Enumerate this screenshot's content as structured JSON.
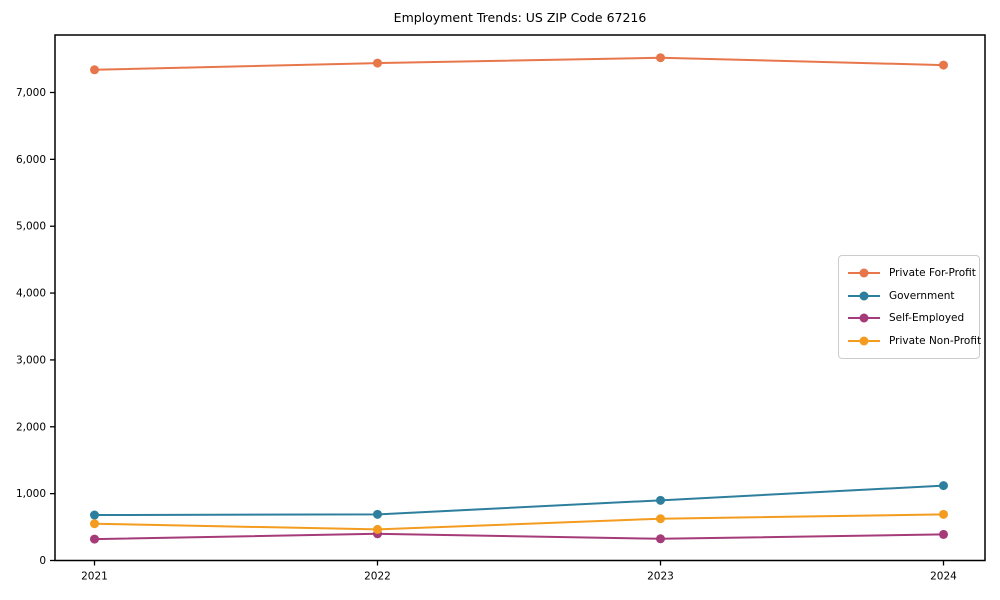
{
  "title": "Employment Trends: US ZIP Code 67216",
  "chart_data": {
    "type": "line",
    "x": [
      "2021",
      "2022",
      "2023",
      "2024"
    ],
    "series": [
      {
        "name": "Private For-Profit",
        "color": "#e8764b",
        "values": [
          7340,
          7440,
          7520,
          7410
        ]
      },
      {
        "name": "Government",
        "color": "#2d7f9d",
        "values": [
          680,
          690,
          900,
          1120
        ]
      },
      {
        "name": "Self-Employed",
        "color": "#a53b78",
        "values": [
          320,
          400,
          325,
          390
        ]
      },
      {
        "name": "Private Non-Profit",
        "color": "#f39c1f",
        "values": [
          550,
          465,
          625,
          690
        ]
      }
    ],
    "yticks": [
      0,
      1000,
      2000,
      3000,
      4000,
      5000,
      6000,
      7000
    ],
    "ytick_labels": [
      "0",
      "1,000",
      "2,000",
      "3,000",
      "4,000",
      "5,000",
      "6,000",
      "7,000"
    ],
    "ylim": [
      0,
      7860
    ],
    "xlabel": "",
    "ylabel": "",
    "grid": false,
    "legend_position": "center right",
    "marker": "circle"
  }
}
